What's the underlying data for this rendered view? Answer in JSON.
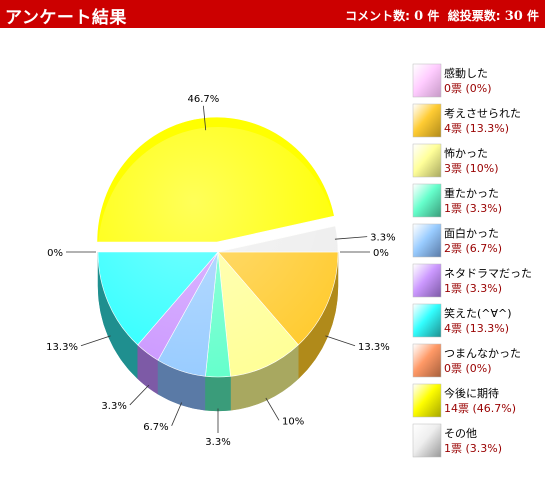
{
  "header": {
    "title": "アンケート結果",
    "comment_label": "コメント数:",
    "comment_count": "0",
    "count_unit": "件",
    "total_label": "総投票数:",
    "total_count": "30",
    "total_unit": "件"
  },
  "chart_data": {
    "type": "pie",
    "title": "",
    "total_votes": 30,
    "slices": [
      {
        "label": "感動した",
        "votes": 0,
        "percent": 0,
        "display": "0票 (0%)",
        "pct_label": "0%",
        "color": "#ffccff",
        "dark": "#c79ac7"
      },
      {
        "label": "考えさせられた",
        "votes": 4,
        "percent": 13.3,
        "display": "4票 (13.3%)",
        "pct_label": "13.3%",
        "color": "#ffcc33",
        "dark": "#b08a1a"
      },
      {
        "label": "怖かった",
        "votes": 3,
        "percent": 10,
        "display": "3票 (10%)",
        "pct_label": "10%",
        "color": "#ffff99",
        "dark": "#a8a860"
      },
      {
        "label": "重たかった",
        "votes": 1,
        "percent": 3.3,
        "display": "1票 (3.3%)",
        "pct_label": "3.3%",
        "color": "#66ffcc",
        "dark": "#3a9c7a"
      },
      {
        "label": "面白かった",
        "votes": 2,
        "percent": 6.7,
        "display": "2票 (6.7%)",
        "pct_label": "6.7%",
        "color": "#99ccff",
        "dark": "#5a7aa6"
      },
      {
        "label": "ネタドラマだった",
        "votes": 1,
        "percent": 3.3,
        "display": "1票 (3.3%)",
        "pct_label": "3.3%",
        "color": "#cc99ff",
        "dark": "#7d5aa6"
      },
      {
        "label": "笑えた(^∀^)",
        "votes": 4,
        "percent": 13.3,
        "display": "4票 (13.3%)",
        "pct_label": "13.3%",
        "color": "#33ffff",
        "dark": "#1f8f8f"
      },
      {
        "label": "つまんなかった",
        "votes": 0,
        "percent": 0,
        "display": "0票 (0%)",
        "pct_label": "0%",
        "color": "#ff9966",
        "dark": "#a65f3c"
      },
      {
        "label": "今後に期待",
        "votes": 14,
        "percent": 46.7,
        "display": "14票 (46.7%)",
        "pct_label": "46.7%",
        "color": "#ffff00",
        "dark": "#a6a600"
      },
      {
        "label": "その他",
        "votes": 1,
        "percent": 3.3,
        "display": "1票 (3.3%)",
        "pct_label": "3.3%",
        "color": "#eeeeee",
        "dark": "#999999"
      }
    ]
  }
}
